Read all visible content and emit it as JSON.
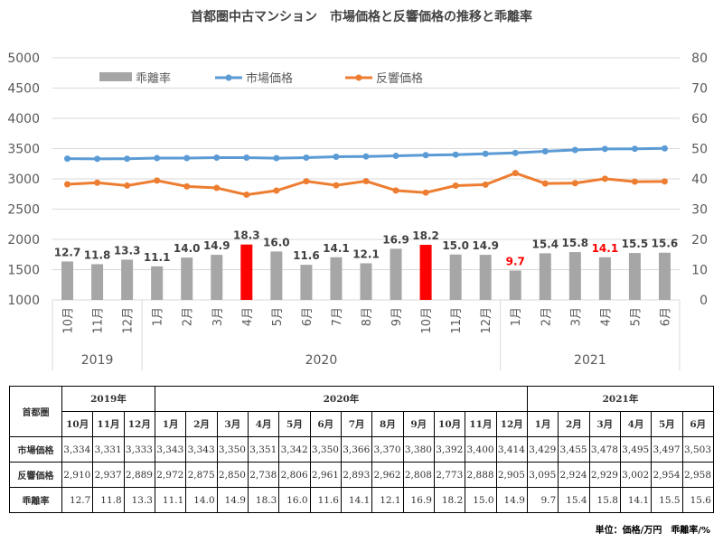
{
  "title": "首都圏中古マンション　市場価格と反響価格の推移と乖離率",
  "chart_data": {
    "type": "bar+line",
    "categories": [
      "10月",
      "11月",
      "12月",
      "1月",
      "2月",
      "3月",
      "4月",
      "5月",
      "6月",
      "7月",
      "8月",
      "9月",
      "10月",
      "11月",
      "12月",
      "1月",
      "2月",
      "3月",
      "4月",
      "5月",
      "6月"
    ],
    "year_groups": [
      {
        "label": "2019",
        "count": 3
      },
      {
        "label": "2020",
        "count": 12
      },
      {
        "label": "2021",
        "count": 6
      }
    ],
    "left_axis": {
      "min": 1000,
      "max": 5000,
      "ticks": [
        "1000",
        "1500",
        "2000",
        "2500",
        "3000",
        "3500",
        "4000",
        "4500",
        "5000"
      ]
    },
    "right_axis": {
      "min": 0,
      "max": 80,
      "ticks": [
        "0",
        "10",
        "20",
        "30",
        "40",
        "50",
        "60",
        "70",
        "80"
      ]
    },
    "legend": {
      "position": "top",
      "items": [
        {
          "name": "乖離率",
          "color": "#a6a6a6",
          "kind": "bar"
        },
        {
          "name": "市場価格",
          "color": "#5b9bd5",
          "kind": "line"
        },
        {
          "name": "反響価格",
          "color": "#ed7d31",
          "kind": "line"
        }
      ]
    },
    "bars": {
      "name": "乖離率",
      "values": [
        12.7,
        11.8,
        13.3,
        11.1,
        14.0,
        14.9,
        18.3,
        16.0,
        11.6,
        14.1,
        12.1,
        16.9,
        18.2,
        15.0,
        14.9,
        9.7,
        15.4,
        15.8,
        14.1,
        15.5,
        15.6
      ],
      "labels": [
        "12.7",
        "11.8",
        "13.3",
        "11.1",
        "14.0",
        "14.9",
        "18.3",
        "16.0",
        "11.6",
        "14.1",
        "12.1",
        "16.9",
        "18.2",
        "15.0",
        "14.9",
        "9.7",
        "15.4",
        "15.8",
        "14.1",
        "15.5",
        "15.6"
      ],
      "color": "#a6a6a6",
      "highlight_color": "#ff0000",
      "highlight_indices": [
        6,
        12
      ],
      "label_red_indices": [
        15,
        18
      ]
    },
    "series": [
      {
        "name": "市場価格",
        "color": "#5b9bd5",
        "values": [
          3334,
          3331,
          3333,
          3343,
          3343,
          3350,
          3351,
          3342,
          3350,
          3366,
          3370,
          3380,
          3392,
          3400,
          3414,
          3429,
          3455,
          3478,
          3495,
          3497,
          3503
        ]
      },
      {
        "name": "反響価格",
        "color": "#ed7d31",
        "values": [
          2910,
          2937,
          2889,
          2972,
          2875,
          2850,
          2738,
          2806,
          2961,
          2893,
          2962,
          2808,
          2773,
          2888,
          2905,
          3095,
          2924,
          2929,
          3002,
          2954,
          2958
        ]
      }
    ]
  },
  "table": {
    "region_label": "首都圏",
    "years": [
      {
        "label": "2019年",
        "span": 3
      },
      {
        "label": "2020年",
        "span": 12
      },
      {
        "label": "2021年",
        "span": 6
      }
    ],
    "months": [
      "10月",
      "11月",
      "12月",
      "1月",
      "2月",
      "3月",
      "4月",
      "5月",
      "6月",
      "7月",
      "8月",
      "9月",
      "10月",
      "11月",
      "12月",
      "1月",
      "2月",
      "3月",
      "4月",
      "5月",
      "6月"
    ],
    "rows": [
      {
        "label": "市場価格",
        "values": [
          "3,334",
          "3,331",
          "3,333",
          "3,343",
          "3,343",
          "3,350",
          "3,351",
          "3,342",
          "3,350",
          "3,366",
          "3,370",
          "3,380",
          "3,392",
          "3,400",
          "3,414",
          "3,429",
          "3,455",
          "3,478",
          "3,495",
          "3,497",
          "3,503"
        ]
      },
      {
        "label": "反響価格",
        "values": [
          "2,910",
          "2,937",
          "2,889",
          "2,972",
          "2,875",
          "2,850",
          "2,738",
          "2,806",
          "2,961",
          "2,893",
          "2,962",
          "2,808",
          "2,773",
          "2,888",
          "2,905",
          "3,095",
          "2,924",
          "2,929",
          "3,002",
          "2,954",
          "2,958"
        ]
      },
      {
        "label": "乖離率",
        "values": [
          "12.7",
          "11.8",
          "13.3",
          "11.1",
          "14.0",
          "14.9",
          "18.3",
          "16.0",
          "11.6",
          "14.1",
          "12.1",
          "16.9",
          "18.2",
          "15.0",
          "14.9",
          "9.7",
          "15.4",
          "15.8",
          "14.1",
          "15.5",
          "15.6"
        ]
      }
    ],
    "unit_note": "単位：価格/万円　乖離率/%"
  }
}
